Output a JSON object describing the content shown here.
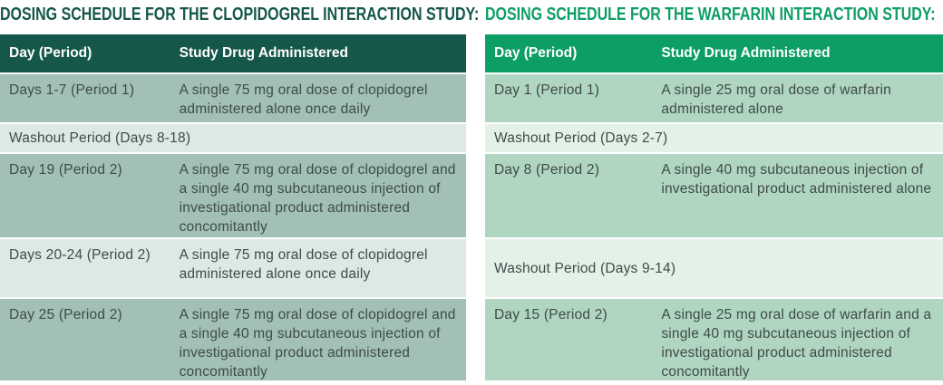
{
  "tables": [
    {
      "title": "DOSING SCHEDULE FOR THE CLOPIDOGREL INTERACTION STUDY:",
      "accent_color": "#15574a",
      "row_dark_color": "#a2c0b8",
      "row_light_color": "#dde9e5",
      "columns": {
        "day": "Day (Period)",
        "drug": "Study Drug Administered"
      },
      "rows": [
        {
          "day": "Days 1-7 (Period 1)",
          "drug": "A single 75 mg oral dose of clopidogrel administered alone once daily"
        },
        {
          "day": "Washout Period (Days 8-18)"
        },
        {
          "day": "Day 19 (Period 2)",
          "drug": "A single 75 mg oral dose of clopidogrel and a single 40 mg subcutaneous injection of investigational product administered concomitantly"
        },
        {
          "day": "Days 20-24 (Period 2)",
          "drug": "A single 75 mg oral dose of clopidogrel administered alone once daily"
        },
        {
          "day": "Day 25 (Period 2)",
          "drug": "A single 75 mg oral dose of clopidogrel and a single 40 mg subcutaneous injection of investigational product administered concomitantly"
        }
      ]
    },
    {
      "title": "DOSING SCHEDULE FOR THE WARFARIN INTERACTION STUDY:",
      "accent_color": "#0d9e66",
      "row_dark_color": "#b0d6c2",
      "row_light_color": "#e4f1e9",
      "columns": {
        "day": "Day (Period)",
        "drug": "Study Drug Administered"
      },
      "rows": [
        {
          "day": "Day 1 (Period 1)",
          "drug": "A single 25 mg oral dose of warfarin administered alone"
        },
        {
          "day": "Washout Period (Days 2-7)"
        },
        {
          "day": "Day 8 (Period 2)",
          "drug": "A single 40 mg subcutaneous injection of investigational product administered alone"
        },
        {
          "day": "Washout Period (Days 9-14)"
        },
        {
          "day": "Day 15 (Period 2)",
          "drug": "A single 25 mg oral dose of warfarin and a single 40 mg subcutaneous injection of investigational product administered concomitantly"
        }
      ]
    }
  ]
}
